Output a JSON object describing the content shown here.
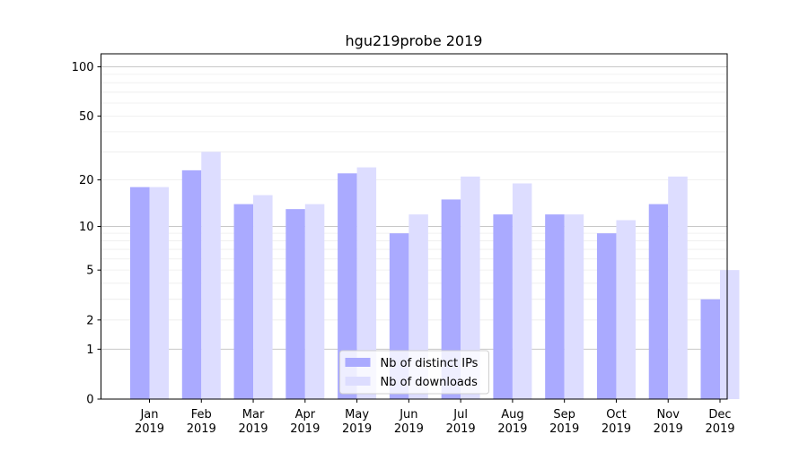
{
  "chart_data": {
    "type": "bar",
    "title": "hgu219probe 2019",
    "xlabel": "",
    "ylabel": "",
    "yscale": "log1p",
    "ylim": [
      0,
      120
    ],
    "yticks": [
      0,
      1,
      2,
      5,
      10,
      20,
      50,
      100
    ],
    "categories": [
      [
        "Jan",
        "2019"
      ],
      [
        "Feb",
        "2019"
      ],
      [
        "Mar",
        "2019"
      ],
      [
        "Apr",
        "2019"
      ],
      [
        "May",
        "2019"
      ],
      [
        "Jun",
        "2019"
      ],
      [
        "Jul",
        "2019"
      ],
      [
        "Aug",
        "2019"
      ],
      [
        "Sep",
        "2019"
      ],
      [
        "Oct",
        "2019"
      ],
      [
        "Nov",
        "2019"
      ],
      [
        "Dec",
        "2019"
      ]
    ],
    "series": [
      {
        "name": "Nb of distinct IPs",
        "color": "#aaaaff",
        "values": [
          18,
          23,
          14,
          13,
          22,
          9,
          15,
          12,
          12,
          9,
          14,
          3
        ]
      },
      {
        "name": "Nb of downloads",
        "color": "#ddddff",
        "values": [
          18,
          30,
          16,
          14,
          24,
          12,
          21,
          19,
          12,
          11,
          21,
          5
        ]
      }
    ],
    "grid": true,
    "legend": {
      "placement": "bottom-center"
    }
  }
}
